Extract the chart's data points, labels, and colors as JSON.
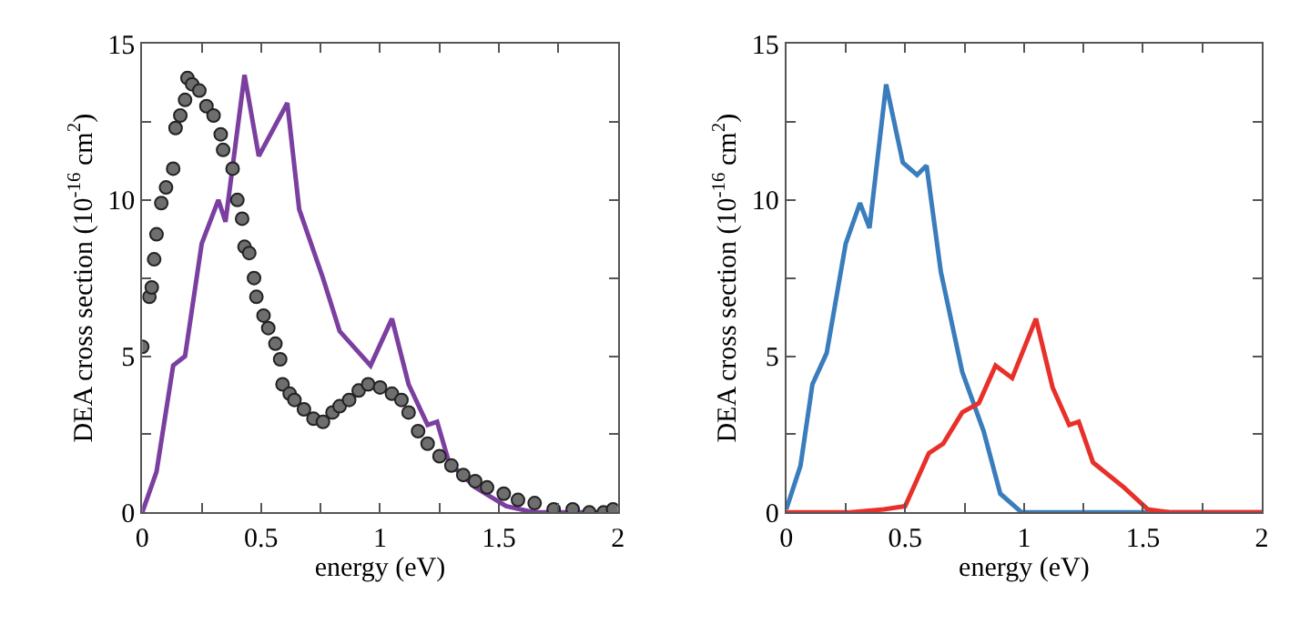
{
  "chart_data": [
    {
      "type": "line",
      "xlabel": "energy (eV)",
      "ylabel": "DEA cross section (10$^{-16}$ cm$^{2}$)",
      "xlim": [
        0,
        2
      ],
      "ylim": [
        0,
        15
      ],
      "xticks": [
        0,
        0.5,
        1,
        1.5,
        2,
        {
          "value": 0.25,
          "label": null
        },
        {
          "value": 0.75,
          "label": null
        },
        {
          "value": 1.25,
          "label": null
        },
        {
          "value": 1.75,
          "label": null
        }
      ],
      "yticks": [
        0,
        5,
        10,
        15,
        {
          "value": 2.5,
          "label": null
        },
        {
          "value": 7.5,
          "label": null
        },
        {
          "value": 12.5,
          "label": null
        }
      ],
      "series": [
        {
          "color": "#7b3fa0",
          "marker": "none",
          "x": [
            0,
            0.06,
            0.13,
            0.18,
            0.25,
            0.32,
            0.35,
            0.43,
            0.49,
            0.61,
            0.66,
            0.76,
            0.83,
            0.96,
            1.05,
            1.12,
            1.2,
            1.24,
            1.29,
            1.4,
            1.53,
            1.65,
            1.86,
            2
          ],
          "values": [
            0,
            1.3,
            4.7,
            5.0,
            8.6,
            10.0,
            9.3,
            14.0,
            11.4,
            13.1,
            9.7,
            7.5,
            5.8,
            4.7,
            6.2,
            4.1,
            2.8,
            2.9,
            1.6,
            0.8,
            0.2,
            0,
            0,
            0
          ]
        },
        {
          "type": "scatter",
          "color": "#6e6e6e",
          "marker": "circle",
          "x": [
            0,
            0.03,
            0.04,
            0.05,
            0.06,
            0.08,
            0.1,
            0.13,
            0.14,
            0.16,
            0.18,
            0.19,
            0.21,
            0.24,
            0.27,
            0.3,
            0.33,
            0.34,
            0.38,
            0.4,
            0.42,
            0.43,
            0.45,
            0.47,
            0.48,
            0.51,
            0.53,
            0.56,
            0.58,
            0.59,
            0.62,
            0.64,
            0.68,
            0.72,
            0.76,
            0.8,
            0.83,
            0.87,
            0.91,
            0.95,
            1.0,
            1.05,
            1.09,
            1.12,
            1.16,
            1.2,
            1.25,
            1.3,
            1.35,
            1.4,
            1.45,
            1.52,
            1.58,
            1.65,
            1.73,
            1.81,
            1.88,
            1.94,
            1.98
          ],
          "values": [
            5.3,
            6.9,
            7.2,
            8.1,
            8.9,
            9.9,
            10.4,
            11.0,
            12.3,
            12.7,
            13.2,
            13.9,
            13.7,
            13.5,
            13.0,
            12.7,
            12.1,
            11.6,
            11.0,
            10.0,
            9.4,
            8.5,
            8.3,
            7.5,
            6.9,
            6.3,
            5.9,
            5.4,
            4.9,
            4.1,
            3.8,
            3.6,
            3.3,
            3.0,
            2.9,
            3.2,
            3.4,
            3.6,
            3.9,
            4.1,
            4.0,
            3.8,
            3.6,
            3.2,
            2.6,
            2.2,
            1.8,
            1.5,
            1.2,
            1.0,
            0.8,
            0.6,
            0.4,
            0.3,
            0.1,
            0.1,
            0.0,
            0.0,
            0.1
          ]
        }
      ]
    },
    {
      "type": "line",
      "xlabel": "energy (eV)",
      "ylabel": "DEA cross section (10$^{-16}$ cm$^{2}$)",
      "xlim": [
        0,
        2
      ],
      "ylim": [
        0,
        15
      ],
      "xticks": [
        0,
        0.5,
        1,
        1.5,
        2,
        {
          "value": 0.25,
          "label": null
        },
        {
          "value": 0.75,
          "label": null
        },
        {
          "value": 1.25,
          "label": null
        },
        {
          "value": 1.75,
          "label": null
        }
      ],
      "yticks": [
        0,
        5,
        10,
        15,
        {
          "value": 2.5,
          "label": null
        },
        {
          "value": 7.5,
          "label": null
        },
        {
          "value": 12.5,
          "label": null
        }
      ],
      "series": [
        {
          "color": "#3a7dbd",
          "marker": "none",
          "x": [
            0,
            0.06,
            0.11,
            0.17,
            0.25,
            0.31,
            0.35,
            0.42,
            0.49,
            0.55,
            0.59,
            0.65,
            0.74,
            0.83,
            0.9,
            0.99,
            1.17,
            2
          ],
          "values": [
            0.1,
            1.5,
            4.1,
            5.1,
            8.6,
            9.9,
            9.1,
            13.7,
            11.2,
            10.8,
            11.1,
            7.7,
            4.5,
            2.6,
            0.6,
            0,
            0,
            0
          ]
        },
        {
          "color": "#e8302a",
          "marker": "none",
          "x": [
            0,
            0.26,
            0.41,
            0.5,
            0.6,
            0.66,
            0.74,
            0.81,
            0.88,
            0.95,
            1.05,
            1.12,
            1.19,
            1.23,
            1.29,
            1.42,
            1.52,
            1.62,
            2
          ],
          "values": [
            0,
            0,
            0.1,
            0.2,
            1.9,
            2.2,
            3.2,
            3.5,
            4.7,
            4.3,
            6.2,
            4.0,
            2.8,
            2.9,
            1.6,
            0.8,
            0.1,
            0,
            0
          ]
        }
      ]
    }
  ]
}
